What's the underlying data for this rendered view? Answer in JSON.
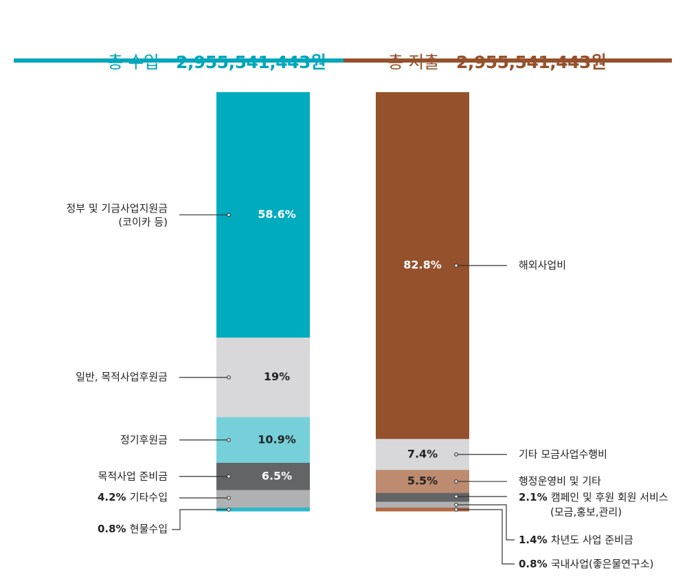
{
  "header": {
    "income_label": "총 수입",
    "income_total": "2,955,541,443원",
    "expense_label": "총 지출",
    "expense_total": "2,955,541,443원"
  },
  "colors": {
    "income_accent": "#00a6ba",
    "expense_accent": "#95512c"
  },
  "chart_data": [
    {
      "type": "bar",
      "stacked": true,
      "title": "총 수입 2,955,541,443원",
      "unit": "%",
      "segments": [
        {
          "label": "정부 및 기금사업지원금",
          "label2": "(코이카 등)",
          "value": 58.6,
          "value_label": "58.6%",
          "color": "#00abbe",
          "text_color": "#ffffff"
        },
        {
          "label": "일반, 목적사업후원금",
          "value": 19,
          "value_label": "19%",
          "color": "#d8d8da",
          "text_color": "#222222"
        },
        {
          "label": "정기후원금",
          "value": 10.9,
          "value_label": "10.9%",
          "color": "#76d0da",
          "text_color": "#222222"
        },
        {
          "label": "목적사업 준비금",
          "value": 6.5,
          "value_label": "6.5%",
          "color": "#636466",
          "text_color": "#ffffff"
        },
        {
          "label": "기타수입",
          "value": 4.2,
          "value_label": "4.2%",
          "color": "#b0b1b3",
          "outside": true
        },
        {
          "label": "현물수입",
          "value": 0.8,
          "value_label": "0.8%",
          "color": "#2cb8c8",
          "outside": true
        }
      ]
    },
    {
      "type": "bar",
      "stacked": true,
      "title": "총 지출 2,955,541,443원",
      "unit": "%",
      "segments": [
        {
          "label": "해외사업비",
          "value": 82.8,
          "value_label": "82.8%",
          "color": "#95512c",
          "text_color": "#ffffff"
        },
        {
          "label": "기타 모금사업수행비",
          "value": 7.4,
          "value_label": "7.4%",
          "color": "#d8d8da",
          "text_color": "#222222"
        },
        {
          "label": "행정운영비 및 기타",
          "value": 5.5,
          "value_label": "5.5%",
          "color": "#bd8b70",
          "text_color": "#222222"
        },
        {
          "label": "캠페인 및 후원 회원 서비스",
          "label2": "(모금,홍보,관리)",
          "value": 2.1,
          "value_label": "2.1%",
          "color": "#636466",
          "outside": true
        },
        {
          "label": "차년도 사업 준비금",
          "value": 1.4,
          "value_label": "1.4%",
          "color": "#b0b1b3",
          "outside": true
        },
        {
          "label": "국내사업(좋은물연구소)",
          "value": 0.8,
          "value_label": "0.8%",
          "color": "#b26a45",
          "outside": true
        }
      ]
    }
  ]
}
